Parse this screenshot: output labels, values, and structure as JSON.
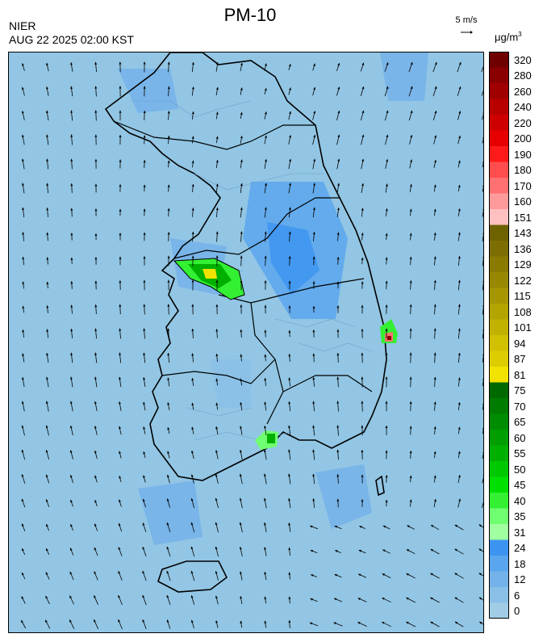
{
  "header": {
    "title": "PM-10",
    "agency": "NIER",
    "timestamp": "AUG 22 2025 02:00 KST"
  },
  "wind_reference": {
    "label": "5 m/s"
  },
  "colorbar": {
    "unit_prefix": "μg/m",
    "unit_power": "3",
    "labels": [
      "320",
      "280",
      "260",
      "240",
      "220",
      "200",
      "190",
      "180",
      "170",
      "160",
      "151",
      "143",
      "136",
      "129",
      "122",
      "115",
      "108",
      "101",
      "94",
      "87",
      "81",
      "75",
      "70",
      "65",
      "60",
      "55",
      "50",
      "45",
      "40",
      "35",
      "31",
      "24",
      "18",
      "12",
      "6",
      "0"
    ],
    "colors": [
      "#6e0000",
      "#8a0000",
      "#a00000",
      "#b80000",
      "#cf0000",
      "#e60000",
      "#ff1a1a",
      "#ff4d4d",
      "#ff7070",
      "#ff9a9a",
      "#ffc0c0",
      "#6e6200",
      "#7c6e00",
      "#8a7a00",
      "#988800",
      "#a69600",
      "#b4a400",
      "#c2b200",
      "#d0c000",
      "#dccc00",
      "#f2e200",
      "#006a00",
      "#007c00",
      "#008c00",
      "#009e00",
      "#00b000",
      "#00c800",
      "#00e000",
      "#33f033",
      "#70ff70",
      "#a0ffa0",
      "#3d94f0",
      "#5aa6ee",
      "#74b2ea",
      "#8ac0e8",
      "#a0cce6"
    ]
  }
}
